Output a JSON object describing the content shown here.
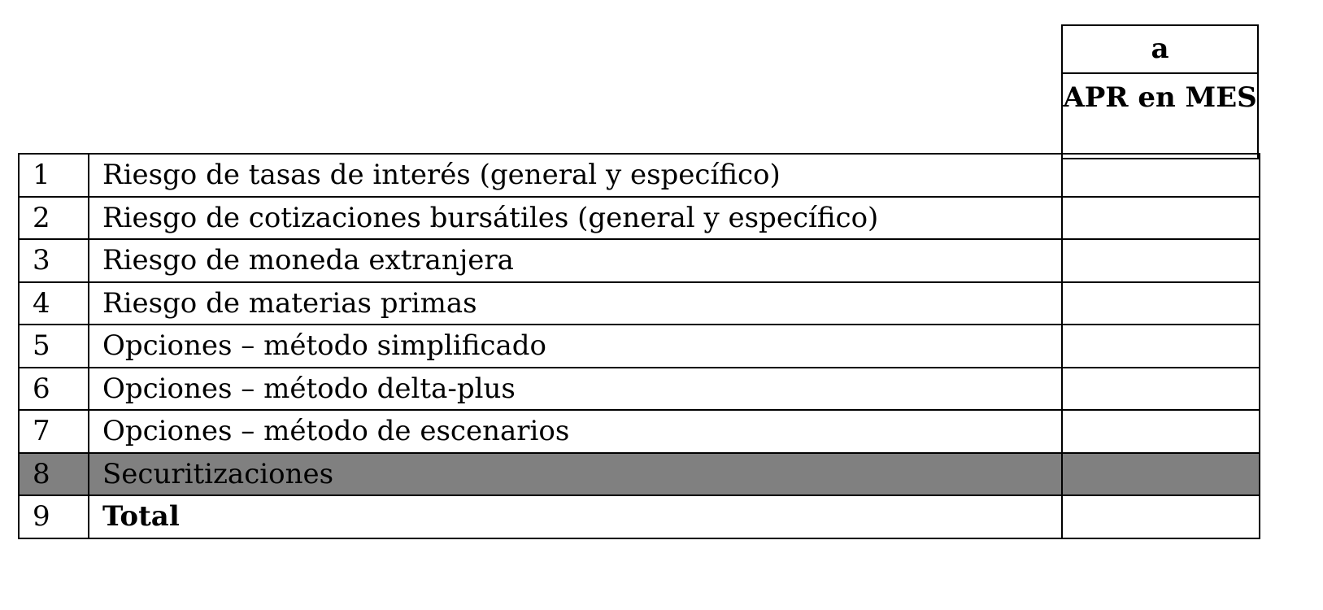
{
  "header": {
    "column_letter": "a",
    "column_title": "APR en MES"
  },
  "rows": [
    {
      "num": "1",
      "label": "Riesgo de tasas de interés (general y específico)",
      "value": ""
    },
    {
      "num": "2",
      "label": "Riesgo de cotizaciones bursátiles (general y específico)",
      "value": ""
    },
    {
      "num": "3",
      "label": "Riesgo de moneda extranjera",
      "value": ""
    },
    {
      "num": "4",
      "label": "Riesgo de materias primas",
      "value": ""
    },
    {
      "num": "5",
      "label": "Opciones – método simplificado",
      "value": ""
    },
    {
      "num": "6",
      "label": "Opciones – método delta-plus",
      "value": ""
    },
    {
      "num": "7",
      "label": "Opciones – método de escenarios",
      "value": ""
    },
    {
      "num": "8",
      "label": "Securitizaciones",
      "value": "",
      "shaded": true
    },
    {
      "num": "9",
      "label": "Total",
      "value": "",
      "bold": true
    }
  ],
  "colors": {
    "shaded_row": "#808080",
    "border": "#000000"
  }
}
